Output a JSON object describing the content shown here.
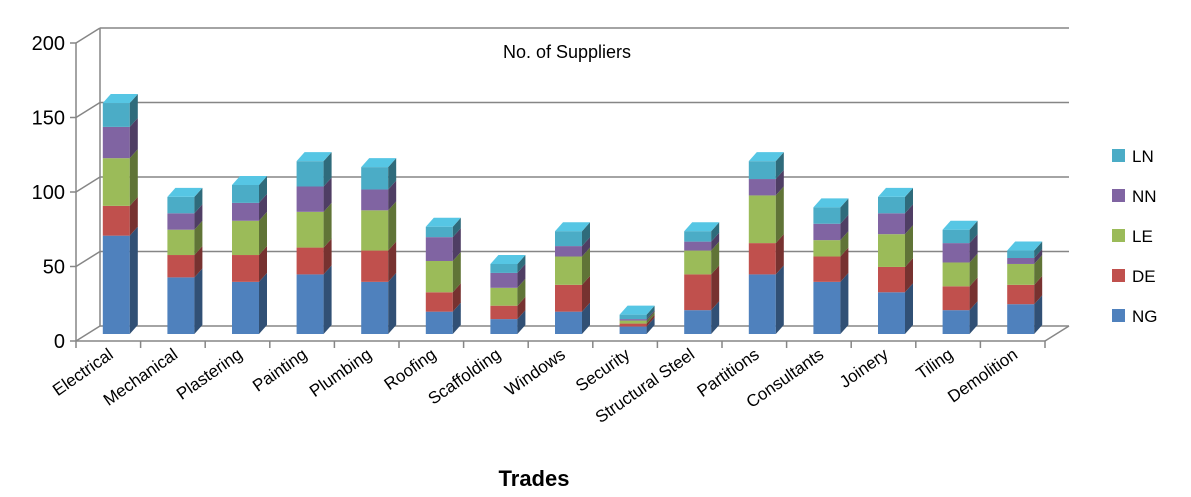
{
  "chart_data": {
    "type": "bar",
    "stacked": true,
    "three_d": true,
    "title": "No. of Suppliers",
    "xlabel": "Trades",
    "ylabel": "",
    "ylim": [
      0,
      200
    ],
    "yticks": [
      0,
      50,
      100,
      150,
      200
    ],
    "grid": true,
    "legend_position": "right",
    "categories": [
      "Electrical",
      "Mechanical",
      "Plastering",
      "Painting",
      "Plumbing",
      "Roofing",
      "Scaffolding",
      "Windows",
      "Security",
      "Structural Steel",
      "Partitions",
      "Consultants",
      "Joinery",
      "Tiling",
      "Demolition"
    ],
    "series": [
      {
        "name": "NG",
        "color": "#4F81BD",
        "values": [
          66,
          38,
          35,
          40,
          35,
          15,
          10,
          15,
          5,
          16,
          40,
          35,
          28,
          16,
          20
        ]
      },
      {
        "name": "DE",
        "color": "#C0504D",
        "values": [
          20,
          15,
          18,
          18,
          21,
          13,
          9,
          18,
          2,
          24,
          21,
          17,
          17,
          16,
          13
        ]
      },
      {
        "name": "LE",
        "color": "#9BBB59",
        "values": [
          32,
          17,
          23,
          24,
          27,
          21,
          12,
          19,
          2,
          16,
          32,
          11,
          22,
          16,
          14
        ]
      },
      {
        "name": "NN",
        "color": "#8064A2",
        "values": [
          21,
          11,
          12,
          17,
          14,
          16,
          10,
          7,
          1,
          6,
          11,
          11,
          14,
          13,
          4
        ]
      },
      {
        "name": "LN",
        "color": "#4BACC6",
        "values": [
          16,
          11,
          12,
          17,
          15,
          7,
          6,
          10,
          3,
          7,
          12,
          11,
          11,
          9,
          5
        ]
      }
    ]
  }
}
